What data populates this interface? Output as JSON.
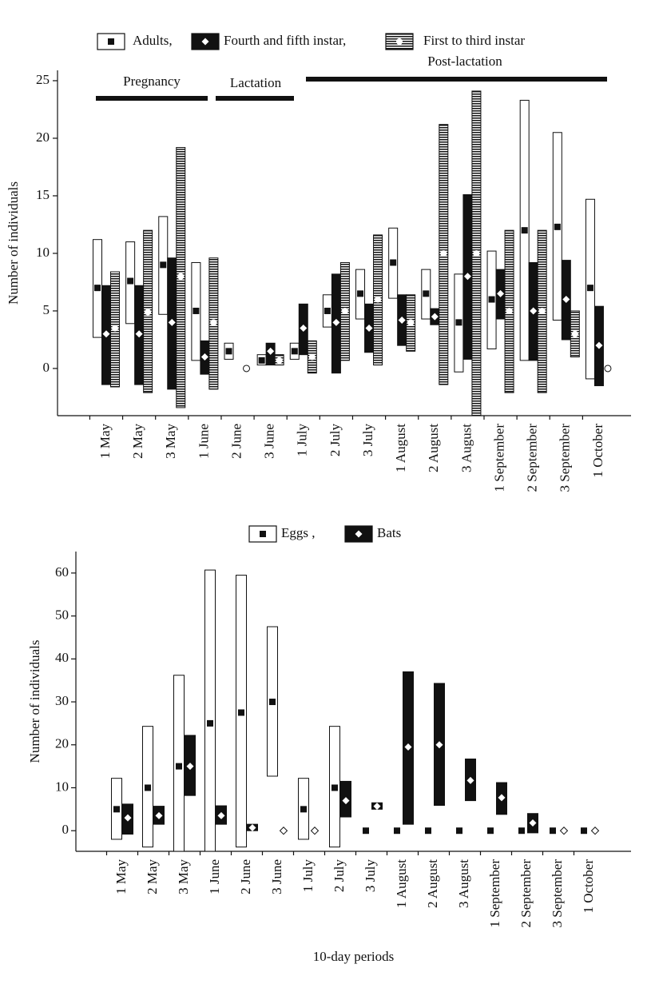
{
  "chart_data": [
    {
      "type": "range",
      "ylabel": "Number of individuals",
      "categories": [
        "1 May",
        "2 May",
        "3 May",
        "1 June",
        "2 June",
        "3 June",
        "1 July",
        "2 July",
        "3 July",
        "1 August",
        "2 August",
        "3 August",
        "1 September",
        "2 September",
        "3 September",
        "1 October"
      ],
      "annotations": [
        "Pregnancy",
        "Lactation",
        "Post-lactation"
      ],
      "ylim": [
        -4.1,
        25.9
      ],
      "yticks": [
        0,
        5,
        10,
        15,
        20,
        25
      ],
      "series": [
        {
          "name": "Adults,",
          "color": "white",
          "marker": "square",
          "values": [
            7.0,
            7.6,
            9.0,
            5.0,
            1.5,
            0.7,
            1.5,
            5.0,
            6.5,
            9.2,
            6.5,
            4.0,
            6.0,
            12.0,
            12.3,
            7.0
          ],
          "low": [
            2.7,
            3.9,
            4.7,
            0.7,
            0.8,
            0.3,
            0.8,
            3.6,
            4.3,
            6.1,
            4.3,
            -0.3,
            1.7,
            0.7,
            4.2,
            -0.9
          ],
          "high": [
            11.2,
            11.0,
            13.2,
            9.2,
            2.2,
            1.2,
            2.2,
            6.4,
            8.6,
            12.2,
            8.6,
            8.2,
            10.2,
            23.3,
            20.5,
            14.7
          ]
        },
        {
          "name": "Fourth and fifth instar,",
          "color": "black",
          "marker": "diamond",
          "values": [
            3.0,
            3.0,
            4.0,
            1.0,
            null,
            1.5,
            3.5,
            4.0,
            3.5,
            4.2,
            4.5,
            8.0,
            6.5,
            5.0,
            6.0,
            2.0
          ],
          "low": [
            -1.4,
            -1.4,
            -1.8,
            -0.5,
            null,
            0.3,
            1.2,
            -0.4,
            1.4,
            2.0,
            3.8,
            0.8,
            4.3,
            0.7,
            2.5,
            -1.5
          ],
          "high": [
            7.2,
            7.2,
            9.6,
            2.4,
            null,
            2.2,
            5.6,
            8.2,
            5.6,
            6.4,
            5.2,
            15.1,
            8.6,
            9.2,
            9.4,
            5.4
          ]
        },
        {
          "name": "First to third instar",
          "color": "striped",
          "marker": "circle",
          "values": [
            3.5,
            4.9,
            8.0,
            4.0,
            0,
            0.7,
            1.0,
            5.0,
            6.0,
            4.0,
            10.0,
            10.0,
            5.0,
            5.0,
            3.0,
            0
          ],
          "low": [
            -1.6,
            -2.1,
            -3.4,
            -1.8,
            null,
            0.3,
            -0.4,
            0.7,
            0.3,
            1.5,
            -1.4,
            -4.1,
            -2.1,
            -2.1,
            1.0,
            null
          ],
          "high": [
            8.4,
            12.0,
            19.2,
            9.6,
            null,
            1.2,
            2.4,
            9.2,
            11.6,
            6.4,
            21.2,
            24.1,
            12.0,
            12.0,
            5.0,
            null
          ]
        }
      ]
    },
    {
      "type": "range",
      "xlabel": "10-day periods",
      "ylabel": "Number of individuals",
      "categories": [
        "1 May",
        "2 May",
        "3 May",
        "1 June",
        "2 June",
        "3 June",
        "1 July",
        "2 July",
        "3 July",
        "1 August",
        "2 August",
        "3 August",
        "1 September",
        "2 September",
        "3 September",
        "1 October"
      ],
      "ylim": [
        -4.8,
        65
      ],
      "yticks": [
        0,
        10,
        20,
        30,
        40,
        50,
        60
      ],
      "series": [
        {
          "name": "Eggs ,",
          "color": "white",
          "marker": "square",
          "values": [
            5,
            10,
            15,
            25,
            27.5,
            30,
            5,
            10,
            0,
            0,
            0,
            0,
            0,
            0,
            0,
            0
          ],
          "low": [
            -2,
            -3.8,
            -4.8,
            -4.8,
            -3.8,
            12.7,
            -2,
            -3.8,
            null,
            null,
            null,
            null,
            null,
            null,
            null,
            null
          ],
          "high": [
            12.2,
            24.3,
            36.2,
            60.7,
            59.5,
            47.5,
            12.2,
            24.3,
            null,
            null,
            null,
            null,
            null,
            null,
            null,
            null
          ]
        },
        {
          "name": "Bats",
          "color": "black",
          "marker": "diamond",
          "values": [
            3,
            3.5,
            15,
            3.5,
            0.7,
            0,
            0,
            7,
            5.7,
            19.5,
            20,
            11.7,
            7.7,
            1.8,
            0,
            0
          ],
          "low": [
            -0.8,
            1.5,
            8.2,
            1.5,
            0,
            null,
            null,
            3.2,
            5,
            1.5,
            5.9,
            7,
            3.8,
            -0.5,
            null,
            null
          ],
          "high": [
            6.2,
            5.7,
            22.2,
            5.8,
            1.5,
            null,
            null,
            11.5,
            6.5,
            37,
            34.3,
            16.7,
            11.2,
            4,
            null,
            null
          ]
        }
      ]
    }
  ]
}
